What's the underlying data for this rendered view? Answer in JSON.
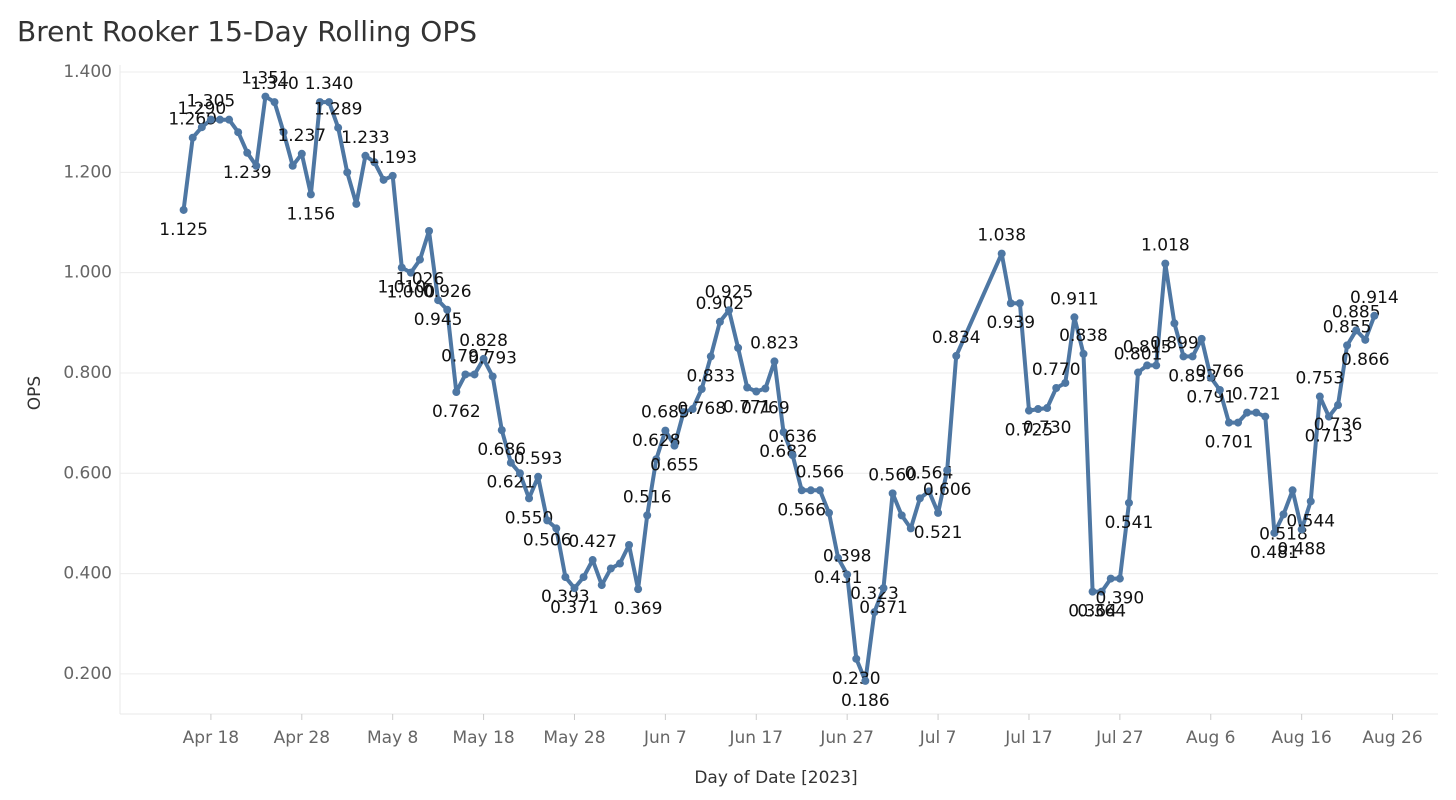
{
  "chart_data": {
    "type": "line",
    "title": "Brent Rooker 15-Day Rolling OPS",
    "x_label": "Day of Date [2023]",
    "y_label": "OPS",
    "color": "#4e77a3",
    "grid": true,
    "xlim": [
      "2023-04-08",
      "2023-08-31"
    ],
    "xticks": [
      {
        "value": "2023-04-18",
        "label": "Apr 18"
      },
      {
        "value": "2023-04-28",
        "label": "Apr 28"
      },
      {
        "value": "2023-05-08",
        "label": "May 8"
      },
      {
        "value": "2023-05-18",
        "label": "May 18"
      },
      {
        "value": "2023-05-28",
        "label": "May 28"
      },
      {
        "value": "2023-06-07",
        "label": "Jun 7"
      },
      {
        "value": "2023-06-17",
        "label": "Jun 17"
      },
      {
        "value": "2023-06-27",
        "label": "Jun 27"
      },
      {
        "value": "2023-07-07",
        "label": "Jul 7"
      },
      {
        "value": "2023-07-17",
        "label": "Jul 17"
      },
      {
        "value": "2023-07-27",
        "label": "Jul 27"
      },
      {
        "value": "2023-08-06",
        "label": "Aug 6"
      },
      {
        "value": "2023-08-16",
        "label": "Aug 16"
      },
      {
        "value": "2023-08-26",
        "label": "Aug 26"
      }
    ],
    "ylim": [
      0.12,
      1.414
    ],
    "yticks": [
      {
        "value": 0.2,
        "label": "0.200"
      },
      {
        "value": 0.4,
        "label": "0.400"
      },
      {
        "value": 0.6,
        "label": "0.600"
      },
      {
        "value": 0.8,
        "label": "0.800"
      },
      {
        "value": 1.0,
        "label": "1.000"
      },
      {
        "value": 1.2,
        "label": "1.200"
      },
      {
        "value": 1.4,
        "label": "1.400"
      }
    ],
    "x": [
      "2023-04-15",
      "2023-04-16",
      "2023-04-17",
      "2023-04-18",
      "2023-04-19",
      "2023-04-20",
      "2023-04-21",
      "2023-04-22",
      "2023-04-23",
      "2023-04-24",
      "2023-04-25",
      "2023-04-26",
      "2023-04-27",
      "2023-04-28",
      "2023-04-29",
      "2023-04-30",
      "2023-05-01",
      "2023-05-02",
      "2023-05-03",
      "2023-05-04",
      "2023-05-05",
      "2023-05-06",
      "2023-05-07",
      "2023-05-08",
      "2023-05-09",
      "2023-05-10",
      "2023-05-11",
      "2023-05-12",
      "2023-05-13",
      "2023-05-14",
      "2023-05-15",
      "2023-05-16",
      "2023-05-17",
      "2023-05-18",
      "2023-05-19",
      "2023-05-20",
      "2023-05-21",
      "2023-05-22",
      "2023-05-23",
      "2023-05-24",
      "2023-05-25",
      "2023-05-26",
      "2023-05-27",
      "2023-05-28",
      "2023-05-29",
      "2023-05-30",
      "2023-05-31",
      "2023-06-01",
      "2023-06-02",
      "2023-06-03",
      "2023-06-04",
      "2023-06-05",
      "2023-06-06",
      "2023-06-07",
      "2023-06-08",
      "2023-06-09",
      "2023-06-10",
      "2023-06-11",
      "2023-06-12",
      "2023-06-13",
      "2023-06-14",
      "2023-06-15",
      "2023-06-16",
      "2023-06-17",
      "2023-06-18",
      "2023-06-19",
      "2023-06-20",
      "2023-06-21",
      "2023-06-22",
      "2023-06-23",
      "2023-06-24",
      "2023-06-25",
      "2023-06-26",
      "2023-06-27",
      "2023-06-28",
      "2023-06-29",
      "2023-06-30",
      "2023-07-01",
      "2023-07-02",
      "2023-07-03",
      "2023-07-04",
      "2023-07-05",
      "2023-07-06",
      "2023-07-07",
      "2023-07-08",
      "2023-07-09",
      "2023-07-14",
      "2023-07-15",
      "2023-07-16",
      "2023-07-17",
      "2023-07-18",
      "2023-07-19",
      "2023-07-20",
      "2023-07-21",
      "2023-07-22",
      "2023-07-23",
      "2023-07-24",
      "2023-07-25",
      "2023-07-26",
      "2023-07-27",
      "2023-07-28",
      "2023-07-29",
      "2023-07-30",
      "2023-07-31",
      "2023-08-01",
      "2023-08-02",
      "2023-08-03",
      "2023-08-04",
      "2023-08-05",
      "2023-08-06",
      "2023-08-07",
      "2023-08-08",
      "2023-08-09",
      "2023-08-10",
      "2023-08-11",
      "2023-08-12",
      "2023-08-13",
      "2023-08-14",
      "2023-08-15",
      "2023-08-16",
      "2023-08-17",
      "2023-08-18",
      "2023-08-19",
      "2023-08-20",
      "2023-08-21",
      "2023-08-22",
      "2023-08-23",
      "2023-08-24"
    ],
    "values": [
      1.125,
      1.269,
      1.29,
      1.305,
      1.305,
      1.305,
      1.28,
      1.239,
      1.213,
      1.351,
      1.34,
      1.28,
      1.213,
      1.237,
      1.156,
      1.34,
      1.34,
      1.289,
      1.2,
      1.137,
      1.233,
      1.22,
      1.185,
      1.193,
      1.01,
      1.0,
      1.026,
      1.083,
      0.945,
      0.926,
      0.762,
      0.797,
      0.797,
      0.828,
      0.793,
      0.686,
      0.621,
      0.6,
      0.55,
      0.593,
      0.506,
      0.49,
      0.393,
      0.371,
      0.393,
      0.427,
      0.377,
      0.41,
      0.42,
      0.457,
      0.369,
      0.516,
      0.628,
      0.685,
      0.655,
      0.722,
      0.728,
      0.768,
      0.833,
      0.902,
      0.925,
      0.85,
      0.771,
      0.763,
      0.769,
      0.823,
      0.682,
      0.636,
      0.566,
      0.566,
      0.566,
      0.521,
      0.431,
      0.398,
      0.23,
      0.186,
      0.323,
      0.371,
      0.56,
      0.516,
      0.49,
      0.55,
      0.564,
      0.521,
      0.606,
      0.834,
      1.038,
      0.939,
      0.939,
      0.725,
      0.728,
      0.73,
      0.77,
      0.78,
      0.911,
      0.838,
      0.364,
      0.364,
      0.39,
      0.39,
      0.541,
      0.801,
      0.815,
      0.815,
      1.018,
      0.899,
      0.833,
      0.833,
      0.868,
      0.791,
      0.766,
      0.701,
      0.701,
      0.721,
      0.721,
      0.713,
      0.481,
      0.518,
      0.566,
      0.488,
      0.544,
      0.753,
      0.713,
      0.736,
      0.855,
      0.885,
      0.866,
      0.914
    ],
    "value_labels": [
      "1.125",
      "1.269",
      "1.290",
      "1.305",
      null,
      null,
      null,
      "1.239",
      null,
      "1.351",
      "1.340",
      null,
      null,
      "1.237",
      "1.156",
      null,
      "1.340",
      "1.289",
      null,
      null,
      "1.233",
      null,
      null,
      "1.193",
      "1.010",
      "1.000",
      "1.026",
      null,
      "0.945",
      "0.926",
      "0.762",
      "0.797",
      null,
      "0.828",
      "0.793",
      "0.686",
      "0.621",
      null,
      "0.550",
      "0.593",
      "0.506",
      null,
      "0.393",
      "0.371",
      null,
      "0.427",
      null,
      null,
      null,
      null,
      "0.369",
      "0.516",
      "0.628",
      "0.685",
      "0.655",
      null,
      null,
      "0.768",
      "0.833",
      "0.902",
      "0.925",
      null,
      "0.771",
      null,
      "0.769",
      "0.823",
      "0.682",
      "0.636",
      "0.566",
      null,
      "0.566",
      null,
      "0.431",
      "0.398",
      "0.230",
      "0.186",
      "0.323",
      "0.371",
      "0.560",
      null,
      null,
      null,
      "0.564",
      "0.521",
      "0.606",
      "0.834",
      "1.038",
      "0.939",
      null,
      "0.725",
      null,
      "0.730",
      "0.770",
      null,
      "0.911",
      "0.838",
      "0.364",
      "0.364",
      null,
      "0.390",
      "0.541",
      "0.801",
      "0.815",
      null,
      "1.018",
      "0.899",
      null,
      "0.833",
      null,
      "0.791",
      "0.766",
      "0.701",
      null,
      null,
      "0.721",
      null,
      "0.481",
      "0.518",
      null,
      "0.488",
      "0.544",
      "0.753",
      "0.713",
      "0.736",
      "0.855",
      "0.885",
      "0.866",
      "0.914"
    ]
  }
}
